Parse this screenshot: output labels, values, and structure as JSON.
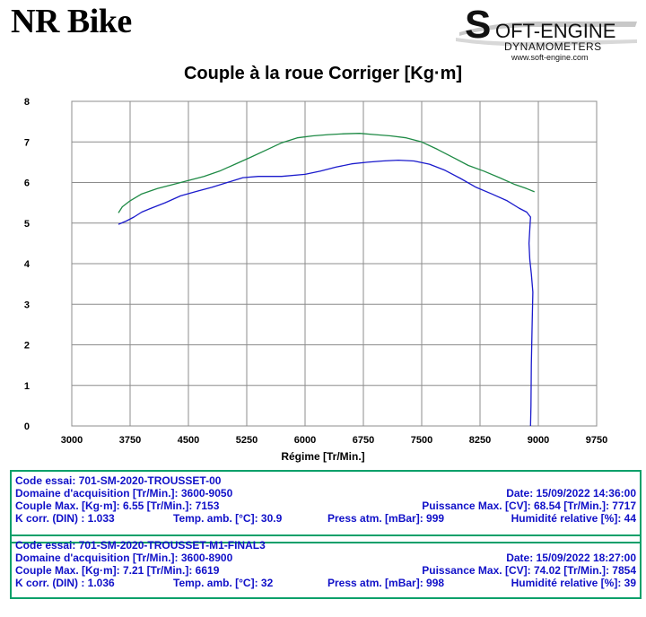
{
  "header": {
    "title": "NR Bike",
    "logo": {
      "line1": "OFT-ENGINE",
      "initial": "S",
      "line2": "DYNAMOMETERS",
      "url": "www.soft-engine.com"
    }
  },
  "chart_data": {
    "type": "line",
    "title": "Couple à la roue Corriger [Kg·m]",
    "xlabel": "Régime [Tr/Min.]",
    "ylabel": "",
    "xlim": [
      3000,
      9750
    ],
    "ylim": [
      0,
      8
    ],
    "x_ticks": [
      "3000",
      "3750",
      "4500",
      "5250",
      "6000",
      "6750",
      "7500",
      "8250",
      "9000",
      "9750"
    ],
    "y_ticks": [
      "0",
      "1",
      "2",
      "3",
      "4",
      "5",
      "6",
      "7",
      "8"
    ],
    "grid": true,
    "colors": {
      "series_1": "#1a1acc",
      "series_2": "#1e8a45"
    },
    "series": [
      {
        "points": [
          [
            3600,
            4.97
          ],
          [
            3700,
            5.05
          ],
          [
            3800,
            5.15
          ],
          [
            3900,
            5.27
          ],
          [
            4000,
            5.35
          ],
          [
            4200,
            5.5
          ],
          [
            4400,
            5.67
          ],
          [
            4600,
            5.78
          ],
          [
            4800,
            5.88
          ],
          [
            5000,
            6.0
          ],
          [
            5200,
            6.12
          ],
          [
            5400,
            6.15
          ],
          [
            5700,
            6.15
          ],
          [
            6000,
            6.2
          ],
          [
            6200,
            6.28
          ],
          [
            6400,
            6.38
          ],
          [
            6600,
            6.46
          ],
          [
            6800,
            6.5
          ],
          [
            7000,
            6.53
          ],
          [
            7200,
            6.55
          ],
          [
            7400,
            6.53
          ],
          [
            7600,
            6.45
          ],
          [
            7800,
            6.3
          ],
          [
            8000,
            6.1
          ],
          [
            8200,
            5.88
          ],
          [
            8400,
            5.72
          ],
          [
            8600,
            5.55
          ],
          [
            8750,
            5.37
          ],
          [
            8850,
            5.27
          ],
          [
            8900,
            5.15
          ],
          [
            8890,
            4.85
          ],
          [
            8880,
            4.5
          ],
          [
            8890,
            4.1
          ],
          [
            8910,
            3.75
          ],
          [
            8930,
            3.3
          ],
          [
            8920,
            2.5
          ],
          [
            8910,
            1.5
          ],
          [
            8905,
            0.5
          ],
          [
            8900,
            0.0
          ]
        ]
      },
      {
        "points": [
          [
            3600,
            5.25
          ],
          [
            3650,
            5.4
          ],
          [
            3750,
            5.55
          ],
          [
            3900,
            5.72
          ],
          [
            4100,
            5.85
          ],
          [
            4300,
            5.95
          ],
          [
            4500,
            6.05
          ],
          [
            4700,
            6.15
          ],
          [
            4900,
            6.28
          ],
          [
            5100,
            6.45
          ],
          [
            5300,
            6.62
          ],
          [
            5500,
            6.8
          ],
          [
            5700,
            6.98
          ],
          [
            5900,
            7.1
          ],
          [
            6100,
            7.15
          ],
          [
            6300,
            7.18
          ],
          [
            6500,
            7.2
          ],
          [
            6700,
            7.21
          ],
          [
            6900,
            7.18
          ],
          [
            7100,
            7.15
          ],
          [
            7300,
            7.1
          ],
          [
            7500,
            7.0
          ],
          [
            7700,
            6.82
          ],
          [
            7900,
            6.62
          ],
          [
            8100,
            6.42
          ],
          [
            8300,
            6.28
          ],
          [
            8500,
            6.12
          ],
          [
            8700,
            5.95
          ],
          [
            8850,
            5.85
          ],
          [
            8950,
            5.77
          ]
        ]
      }
    ]
  },
  "tests": [
    {
      "code": "Code essai: 701-SM-2020-TROUSSET-00",
      "range": "Domaine d'acquisition [Tr/Min.]: 3600-9050",
      "date": "Date: 15/09/2022   14:36:00",
      "torque": "Couple Max. [Kg·m]: 6.55   [Tr/Min.]: 7153",
      "power": "Puissance Max. [CV]: 68.54   [Tr/Min.]: 7717",
      "kcorr": "K corr. (DIN) : 1.033",
      "temp": "Temp. amb. [°C]: 30.9",
      "press": "Press atm. [mBar]: 999",
      "humid": "Humidité relative [%]: 44"
    },
    {
      "code": "Code essai: 701-SM-2020-TROUSSET-M1-FINAL3",
      "range": "Domaine d'acquisition [Tr/Min.]: 3600-8900",
      "date": "Date: 15/09/2022   18:27:00",
      "torque": "Couple Max. [Kg·m]: 7.21   [Tr/Min.]: 6619",
      "power": "Puissance Max. [CV]: 74.02   [Tr/Min.]: 7854",
      "kcorr": "K corr. (DIN) : 1.036",
      "temp": "Temp. amb. [°C]: 32",
      "press": "Press atm. [mBar]: 998",
      "humid": "Humidité relative [%]: 39"
    }
  ]
}
